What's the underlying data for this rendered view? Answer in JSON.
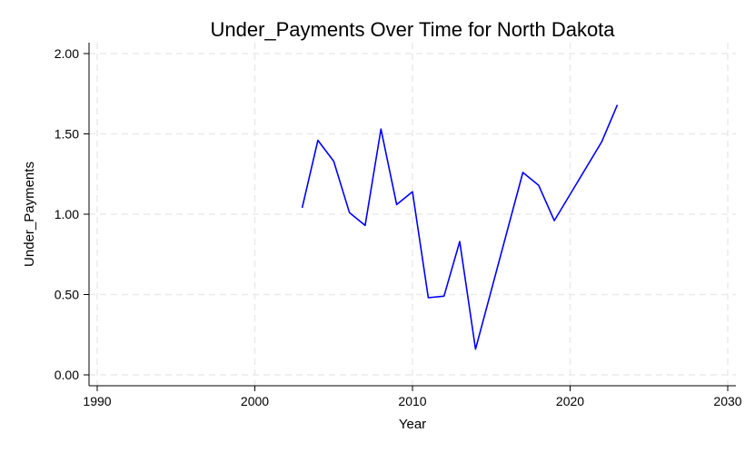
{
  "chart_data": {
    "type": "line",
    "title": "Under_Payments Over Time for North Dakota",
    "xlabel": "Year",
    "ylabel": "Under_Payments",
    "xlim": [
      1990,
      2030
    ],
    "ylim": [
      0,
      2
    ],
    "x_ticks": [
      1990,
      2000,
      2010,
      2020,
      2030
    ],
    "y_ticks": [
      "0.00",
      "0.50",
      "1.00",
      "1.50",
      "2.00"
    ],
    "grid": true,
    "series": [
      {
        "color": "#0000ff",
        "x": [
          2003,
          2004,
          2005,
          2006,
          2007,
          2008,
          2009,
          2010,
          2011,
          2012,
          2013,
          2014,
          2017,
          2018,
          2019,
          2022,
          2023
        ],
        "y": [
          1.04,
          1.46,
          1.33,
          1.01,
          0.93,
          1.53,
          1.06,
          1.14,
          0.48,
          0.49,
          0.83,
          0.16,
          1.26,
          1.18,
          0.96,
          1.45,
          1.68
        ]
      }
    ]
  }
}
